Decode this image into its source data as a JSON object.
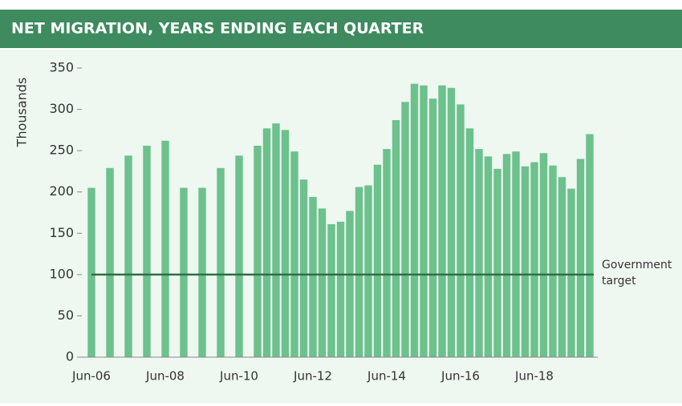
{
  "chart_data": {
    "type": "bar",
    "title": "NET MIGRATION, YEARS ENDING EACH QUARTER",
    "y_label": "Thousands",
    "categories": [
      "Jun-06",
      null,
      null,
      null,
      null,
      null,
      null,
      null,
      "Jun-08",
      null,
      null,
      null,
      null,
      null,
      null,
      null,
      "Jun-10",
      null,
      null,
      null,
      null,
      null,
      null,
      null,
      "Jun-12",
      null,
      null,
      null,
      null,
      null,
      null,
      null,
      "Jun-14",
      null,
      null,
      null,
      null,
      null,
      null,
      null,
      "Jun-16",
      null,
      null,
      null,
      null,
      null,
      null,
      null,
      "Jun-18",
      null,
      null,
      null,
      null,
      null,
      null
    ],
    "values": [
      205,
      null,
      229,
      null,
      244,
      null,
      256,
      null,
      262,
      null,
      205,
      null,
      205,
      null,
      229,
      null,
      244,
      null,
      256,
      277,
      283,
      275,
      249,
      215,
      194,
      180,
      161,
      164,
      177,
      206,
      208,
      233,
      252,
      287,
      309,
      331,
      329,
      313,
      329,
      326,
      306,
      277,
      252,
      243,
      228,
      246,
      249,
      231,
      236,
      247,
      232,
      218,
      204,
      240,
      270
    ],
    "color": "#6cc18d",
    "ylim": [
      0,
      350
    ],
    "yticks": [
      0,
      50,
      100,
      150,
      200,
      250,
      300,
      350
    ],
    "target": {
      "value": 100,
      "label": [
        "Government",
        "target"
      ],
      "color": "#2f6e47"
    }
  }
}
